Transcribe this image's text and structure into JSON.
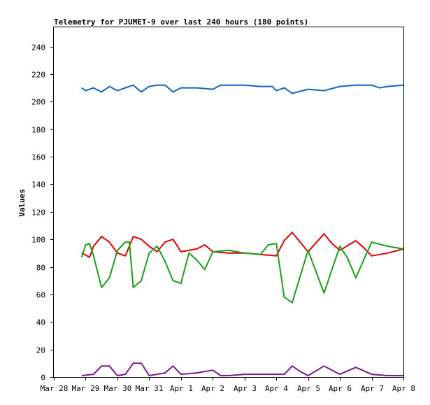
{
  "chart_data": {
    "type": "line",
    "title": "Telemetry for PJUMET-9 over last 240 hours (180 points)",
    "xlabel": "",
    "ylabel": "Values",
    "xlim": [
      "2024-03-28T00:00",
      "2024-04-08T00:00"
    ],
    "ylim": [
      0,
      254
    ],
    "x_tick_labels": [
      "Mar 28",
      "Mar 29",
      "Mar 30",
      "Mar 31",
      "Apr 1",
      "Apr 2",
      "Apr 3",
      "Apr 4",
      "Apr 5",
      "Apr 6",
      "Apr 7",
      "Apr 8"
    ],
    "y_ticks": [
      0,
      20,
      40,
      60,
      80,
      100,
      120,
      140,
      160,
      180,
      200,
      220,
      240
    ],
    "grid": false,
    "series": [
      {
        "color": "#1565c0",
        "points": [
          [
            "2024-03-28T21:00",
            210
          ],
          [
            "2024-03-29T00:00",
            208
          ],
          [
            "2024-03-29T06:00",
            210
          ],
          [
            "2024-03-29T12:00",
            207
          ],
          [
            "2024-03-29T18:00",
            211
          ],
          [
            "2024-03-30T00:00",
            208
          ],
          [
            "2024-03-30T06:00",
            210
          ],
          [
            "2024-03-30T12:00",
            212
          ],
          [
            "2024-03-30T18:00",
            207
          ],
          [
            "2024-03-31T00:00",
            211
          ],
          [
            "2024-03-31T06:00",
            212
          ],
          [
            "2024-03-31T12:00",
            212
          ],
          [
            "2024-03-31T18:00",
            207
          ],
          [
            "2024-04-01T00:00",
            210
          ],
          [
            "2024-04-01T12:00",
            210
          ],
          [
            "2024-04-02T00:00",
            209
          ],
          [
            "2024-04-02T06:00",
            212
          ],
          [
            "2024-04-02T12:00",
            212
          ],
          [
            "2024-04-03T00:00",
            212
          ],
          [
            "2024-04-03T12:00",
            211
          ],
          [
            "2024-04-03T21:00",
            211
          ],
          [
            "2024-04-04T00:00",
            208
          ],
          [
            "2024-04-04T06:00",
            210
          ],
          [
            "2024-04-04T12:00",
            206
          ],
          [
            "2024-04-05T00:00",
            209
          ],
          [
            "2024-04-05T12:00",
            208
          ],
          [
            "2024-04-06T00:00",
            211
          ],
          [
            "2024-04-06T12:00",
            212
          ],
          [
            "2024-04-07T00:00",
            212
          ],
          [
            "2024-04-07T06:00",
            210
          ],
          [
            "2024-04-07T12:00",
            211
          ],
          [
            "2024-04-08T00:00",
            212
          ]
        ]
      },
      {
        "color": "#e00000",
        "points": [
          [
            "2024-03-28T21:00",
            90
          ],
          [
            "2024-03-29T03:00",
            87
          ],
          [
            "2024-03-29T06:00",
            95
          ],
          [
            "2024-03-29T12:00",
            102
          ],
          [
            "2024-03-29T18:00",
            98
          ],
          [
            "2024-03-30T00:00",
            90
          ],
          [
            "2024-03-30T06:00",
            88
          ],
          [
            "2024-03-30T12:00",
            102
          ],
          [
            "2024-03-30T18:00",
            100
          ],
          [
            "2024-03-31T00:00",
            95
          ],
          [
            "2024-03-31T06:00",
            91
          ],
          [
            "2024-03-31T12:00",
            98
          ],
          [
            "2024-03-31T18:00",
            100
          ],
          [
            "2024-04-01T00:00",
            91
          ],
          [
            "2024-04-01T12:00",
            93
          ],
          [
            "2024-04-01T18:00",
            96
          ],
          [
            "2024-04-02T00:00",
            91
          ],
          [
            "2024-04-02T12:00",
            90
          ],
          [
            "2024-04-03T00:00",
            90
          ],
          [
            "2024-04-03T12:00",
            89
          ],
          [
            "2024-04-04T00:00",
            88
          ],
          [
            "2024-04-04T06:00",
            99
          ],
          [
            "2024-04-04T12:00",
            105
          ],
          [
            "2024-04-04T18:00",
            98
          ],
          [
            "2024-04-05T00:00",
            91
          ],
          [
            "2024-04-05T12:00",
            104
          ],
          [
            "2024-04-05T18:00",
            97
          ],
          [
            "2024-04-06T00:00",
            92
          ],
          [
            "2024-04-06T12:00",
            99
          ],
          [
            "2024-04-06T18:00",
            94
          ],
          [
            "2024-04-07T00:00",
            88
          ],
          [
            "2024-04-07T12:00",
            90
          ],
          [
            "2024-04-08T00:00",
            93
          ]
        ]
      },
      {
        "color": "#1a9f1a",
        "points": [
          [
            "2024-03-28T21:00",
            87
          ],
          [
            "2024-03-29T00:00",
            96
          ],
          [
            "2024-03-29T03:00",
            97
          ],
          [
            "2024-03-29T06:00",
            88
          ],
          [
            "2024-03-29T12:00",
            65
          ],
          [
            "2024-03-29T18:00",
            72
          ],
          [
            "2024-03-30T00:00",
            92
          ],
          [
            "2024-03-30T06:00",
            98
          ],
          [
            "2024-03-30T09:00",
            98
          ],
          [
            "2024-03-30T12:00",
            65
          ],
          [
            "2024-03-30T18:00",
            70
          ],
          [
            "2024-03-31T00:00",
            90
          ],
          [
            "2024-03-31T06:00",
            95
          ],
          [
            "2024-03-31T12:00",
            84
          ],
          [
            "2024-03-31T18:00",
            70
          ],
          [
            "2024-04-01T00:00",
            68
          ],
          [
            "2024-04-01T06:00",
            90
          ],
          [
            "2024-04-01T12:00",
            85
          ],
          [
            "2024-04-01T18:00",
            78
          ],
          [
            "2024-04-02T00:00",
            91
          ],
          [
            "2024-04-02T12:00",
            92
          ],
          [
            "2024-04-03T00:00",
            90
          ],
          [
            "2024-04-03T12:00",
            89
          ],
          [
            "2024-04-03T18:00",
            96
          ],
          [
            "2024-04-04T00:00",
            97
          ],
          [
            "2024-04-04T06:00",
            58
          ],
          [
            "2024-04-04T12:00",
            54
          ],
          [
            "2024-04-05T00:00",
            92
          ],
          [
            "2024-04-05T12:00",
            61
          ],
          [
            "2024-04-06T00:00",
            95
          ],
          [
            "2024-04-06T06:00",
            86
          ],
          [
            "2024-04-06T12:00",
            72
          ],
          [
            "2024-04-07T00:00",
            98
          ],
          [
            "2024-04-07T12:00",
            95
          ],
          [
            "2024-04-08T00:00",
            93
          ]
        ]
      },
      {
        "color": "#7b1a8f",
        "points": [
          [
            "2024-03-28T21:00",
            1
          ],
          [
            "2024-03-29T06:00",
            2
          ],
          [
            "2024-03-29T12:00",
            8
          ],
          [
            "2024-03-29T18:00",
            8
          ],
          [
            "2024-03-30T00:00",
            1
          ],
          [
            "2024-03-30T06:00",
            2
          ],
          [
            "2024-03-30T12:00",
            10
          ],
          [
            "2024-03-30T18:00",
            10
          ],
          [
            "2024-03-31T00:00",
            1
          ],
          [
            "2024-03-31T06:00",
            2
          ],
          [
            "2024-03-31T12:00",
            3
          ],
          [
            "2024-03-31T18:00",
            8
          ],
          [
            "2024-04-01T00:00",
            2
          ],
          [
            "2024-04-01T12:00",
            3
          ],
          [
            "2024-04-02T00:00",
            5
          ],
          [
            "2024-04-02T06:00",
            1
          ],
          [
            "2024-04-02T12:00",
            1
          ],
          [
            "2024-04-03T00:00",
            2
          ],
          [
            "2024-04-03T12:00",
            2
          ],
          [
            "2024-04-04T00:00",
            2
          ],
          [
            "2024-04-04T06:00",
            2
          ],
          [
            "2024-04-04T12:00",
            8
          ],
          [
            "2024-04-04T18:00",
            4
          ],
          [
            "2024-04-05T00:00",
            1
          ],
          [
            "2024-04-05T12:00",
            8
          ],
          [
            "2024-04-05T18:00",
            5
          ],
          [
            "2024-04-06T00:00",
            2
          ],
          [
            "2024-04-06T12:00",
            7
          ],
          [
            "2024-04-07T00:00",
            2
          ],
          [
            "2024-04-07T12:00",
            1
          ],
          [
            "2024-04-08T00:00",
            1
          ]
        ]
      }
    ]
  }
}
